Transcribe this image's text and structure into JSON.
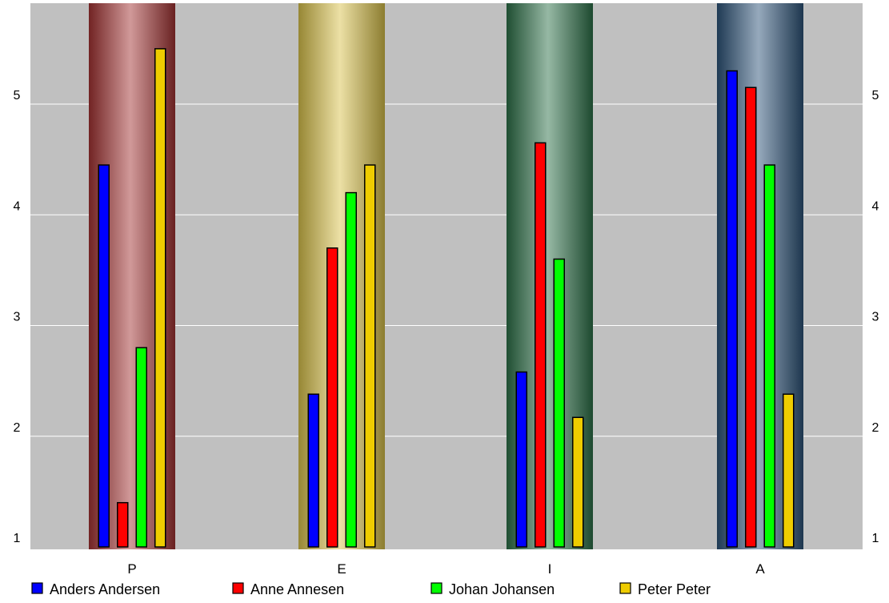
{
  "chart_data": {
    "type": "bar",
    "categories": [
      "P",
      "E",
      "I",
      "A"
    ],
    "series": [
      {
        "name": "Anders Andersen",
        "color": "#0000ff",
        "values": [
          4.45,
          2.38,
          2.58,
          5.3
        ]
      },
      {
        "name": "Anne Annesen",
        "color": "#ff0000",
        "values": [
          1.4,
          3.7,
          4.65,
          5.15
        ]
      },
      {
        "name": "Johan Johansen",
        "color": "#00ff00",
        "values": [
          2.8,
          4.2,
          3.6,
          4.45
        ]
      },
      {
        "name": "Peter Peter",
        "color": "#eecc00",
        "values": [
          5.5,
          4.45,
          2.17,
          2.38
        ]
      }
    ],
    "y_ticks": [
      1,
      2,
      3,
      4,
      5
    ],
    "ylim": [
      1,
      5.9
    ],
    "grid": true,
    "legend_position": "bottom-left",
    "category_band_colors": [
      "#a23232",
      "#d8c14a",
      "#2c7048",
      "#2d5378"
    ],
    "background_color": "#c0c0c0"
  }
}
